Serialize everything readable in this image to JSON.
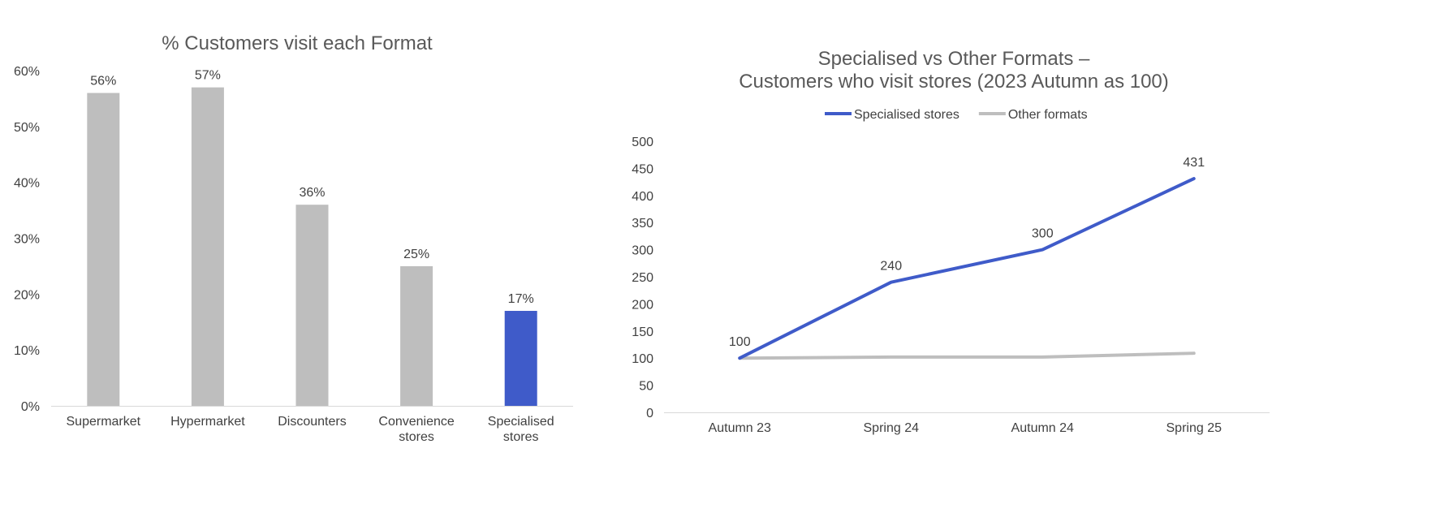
{
  "colors": {
    "highlight": "#3F5BC9",
    "neutral": "#BEBEBE",
    "text": "#404040",
    "title": "#595959",
    "axis": "#D9D9D9"
  },
  "chart_data": [
    {
      "type": "bar",
      "title": "% Customers visit each Format",
      "categories": [
        "Supermarket",
        "Hypermarket",
        "Discounters",
        "Convenience stores",
        "Specialised stores"
      ],
      "category_lines": [
        [
          "Supermarket"
        ],
        [
          "Hypermarket"
        ],
        [
          "Discounters"
        ],
        [
          "Convenience",
          "stores"
        ],
        [
          "Specialised",
          "stores"
        ]
      ],
      "values": [
        56,
        57,
        36,
        25,
        17
      ],
      "value_labels": [
        "56%",
        "57%",
        "36%",
        "25%",
        "17%"
      ],
      "highlight_index": 4,
      "ylim": [
        0,
        60
      ],
      "yticks": [
        0,
        10,
        20,
        30,
        40,
        50,
        60
      ],
      "ytick_labels": [
        "0%",
        "10%",
        "20%",
        "30%",
        "40%",
        "50%",
        "60%"
      ],
      "grid": false
    },
    {
      "type": "line",
      "title_lines": [
        "Specialised vs Other Formats –",
        "Customers who visit stores (2023 Autumn as 100)"
      ],
      "categories": [
        "Autumn 23",
        "Spring 24",
        "Autumn 24",
        "Spring 25"
      ],
      "series": [
        {
          "name": "Specialised stores",
          "values": [
            100,
            240,
            300,
            431
          ],
          "labels": [
            "100",
            "240",
            "300",
            "431"
          ],
          "color": "#3F5BC9"
        },
        {
          "name": "Other formats",
          "values": [
            100,
            102,
            102,
            109
          ],
          "color": "#BEBEBE"
        }
      ],
      "ylim": [
        0,
        500
      ],
      "yticks": [
        0,
        50,
        100,
        150,
        200,
        250,
        300,
        350,
        400,
        450,
        500
      ],
      "legend_position": "top-center",
      "grid": false
    }
  ]
}
